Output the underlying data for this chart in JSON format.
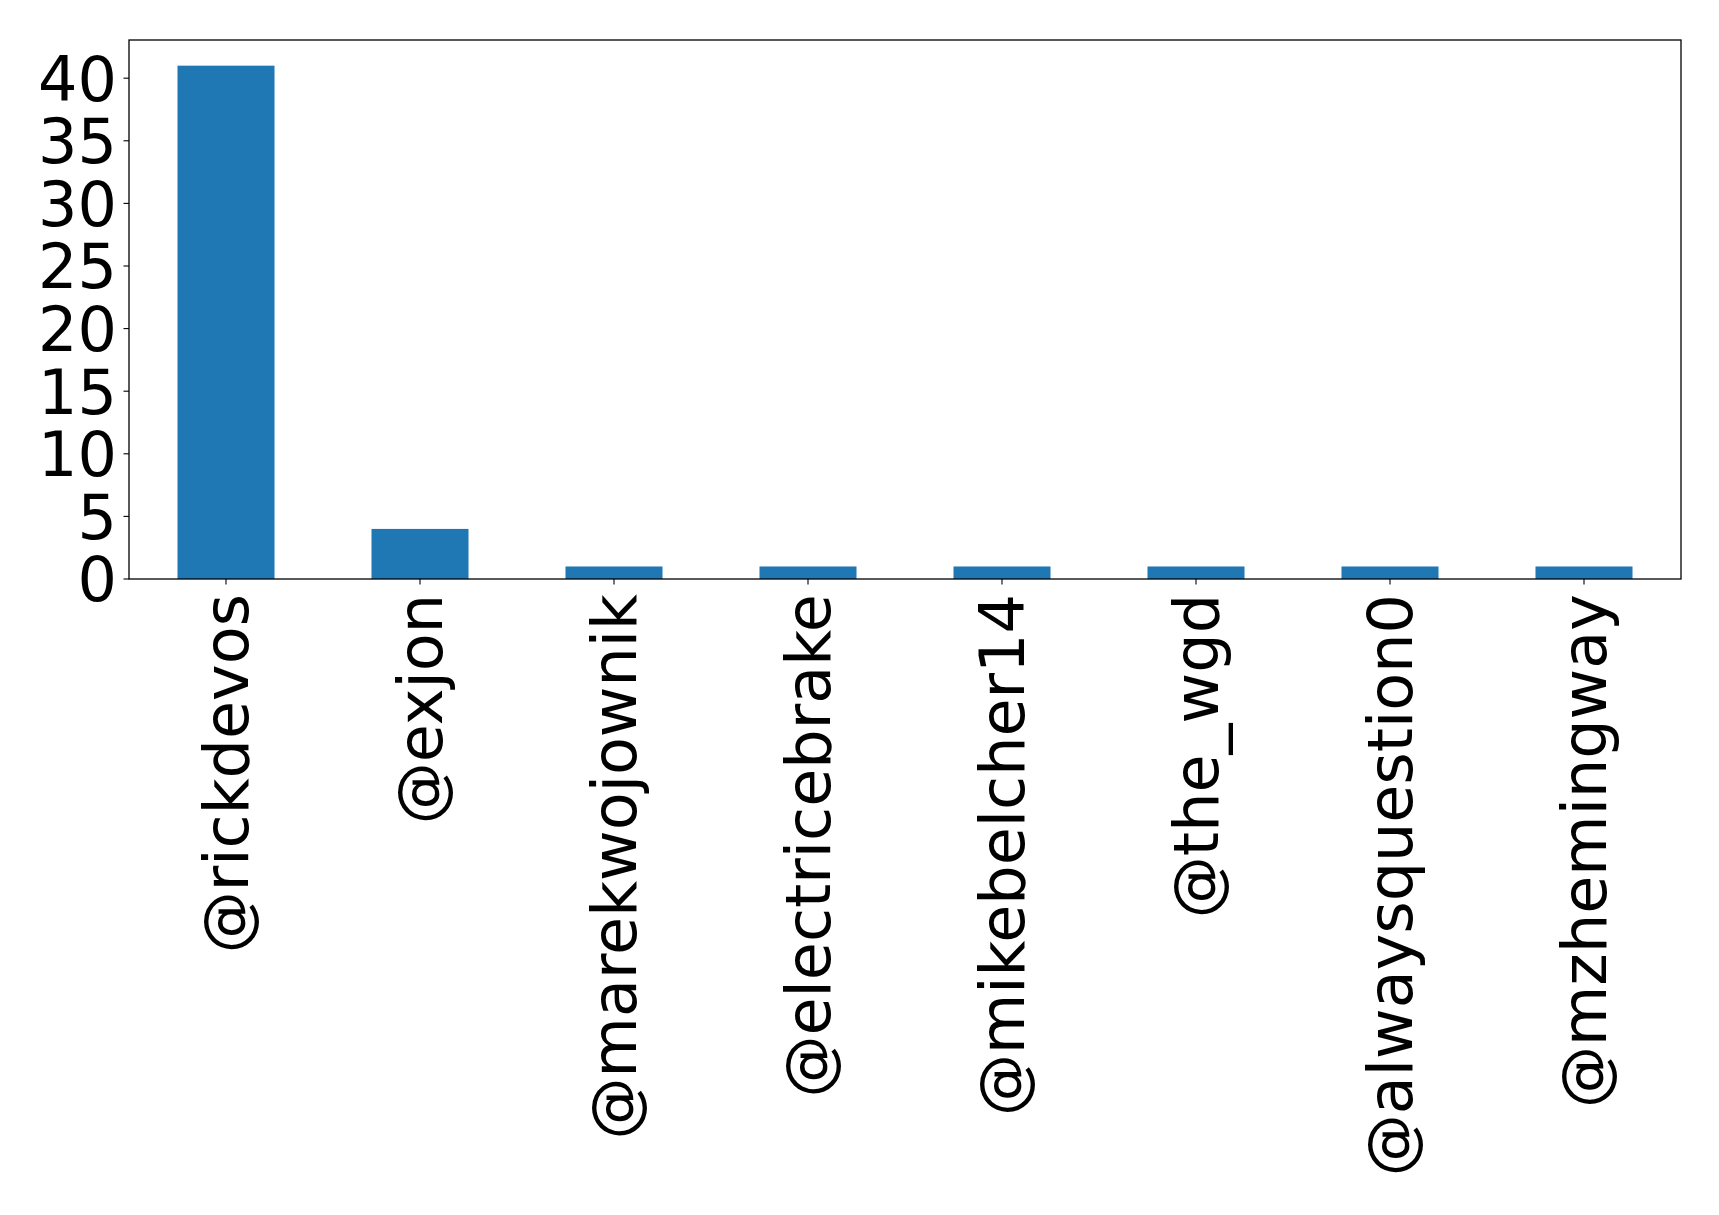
{
  "chart_data": {
    "type": "bar",
    "categories": [
      "@rickdevos",
      "@exjon",
      "@marekwojownik",
      "@electricebrake",
      "@mikebelcher14",
      "@the_wgd",
      "@alwaysquestion0",
      "@mzhemingway"
    ],
    "values": [
      41,
      4,
      1,
      1,
      1,
      1,
      1,
      1
    ],
    "color": "#1f77b4",
    "ylim": [
      0,
      43.05
    ],
    "yticks": [
      0,
      5,
      10,
      15,
      20,
      25,
      30,
      35,
      40
    ]
  }
}
